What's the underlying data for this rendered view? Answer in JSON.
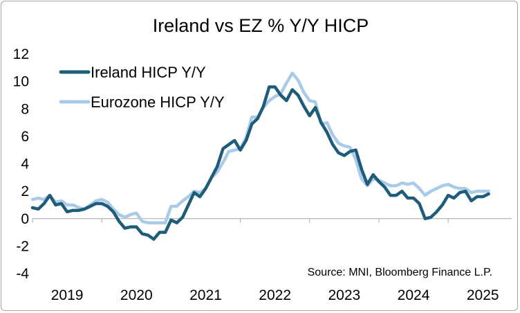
{
  "chart_data": {
    "type": "line",
    "title": "Ireland vs EZ % Y/Y HICP",
    "xlabel": "",
    "ylabel": "",
    "ylim": [
      -4,
      12
    ],
    "yticks": [
      "12",
      "10",
      "8",
      "6",
      "4",
      "2",
      "0",
      "-2",
      "-4"
    ],
    "xlim": [
      2019.0,
      2025.917
    ],
    "xticks": [
      "2019",
      "2020",
      "2021",
      "2022",
      "2023",
      "2024",
      "2025"
    ],
    "legend_position": "top-left",
    "annotation": "Source: MNI, Bloomberg Finance L.P.",
    "colors": {
      "ireland": "#1f5c7a",
      "eurozone": "#a9cbe8",
      "axis": "#a6a6a6"
    },
    "series": [
      {
        "name": "Ireland HICP Y/Y",
        "x_start": "2019-01",
        "frequency": "monthly",
        "values": [
          0.8,
          0.7,
          1.1,
          1.7,
          1.0,
          1.1,
          0.5,
          0.6,
          0.6,
          0.7,
          0.9,
          1.1,
          1.1,
          0.9,
          0.5,
          -0.2,
          -0.7,
          -0.6,
          -0.6,
          -1.1,
          -1.2,
          -1.5,
          -1.0,
          -1.0,
          -0.1,
          -0.3,
          0.1,
          1.0,
          1.9,
          1.6,
          2.2,
          3.0,
          3.8,
          5.1,
          5.4,
          5.7,
          5.0,
          5.7,
          6.9,
          7.3,
          8.2,
          9.6,
          9.6,
          9.0,
          8.6,
          9.4,
          9.0,
          8.2,
          7.5,
          8.1,
          7.0,
          6.3,
          5.4,
          4.8,
          4.6,
          4.9,
          5.0,
          3.6,
          2.5,
          3.2,
          2.7,
          2.3,
          1.7,
          1.7,
          2.0,
          1.5,
          1.5,
          1.1,
          0.0,
          0.1,
          0.5,
          1.0,
          1.7,
          1.5,
          1.9,
          2.0,
          1.3,
          1.6,
          1.6,
          1.8
        ]
      },
      {
        "name": "Eurozone HICP Y/Y",
        "x_start": "2019-01",
        "frequency": "monthly",
        "values": [
          1.4,
          1.5,
          1.4,
          1.7,
          1.2,
          1.3,
          1.0,
          1.0,
          0.8,
          0.7,
          1.0,
          1.3,
          1.4,
          1.2,
          0.7,
          0.3,
          0.1,
          0.3,
          0.4,
          -0.2,
          -0.3,
          -0.3,
          -0.3,
          -0.3,
          0.9,
          0.9,
          1.3,
          1.6,
          2.0,
          1.9,
          2.2,
          3.0,
          3.4,
          4.1,
          4.9,
          5.0,
          5.1,
          5.9,
          7.4,
          7.4,
          8.1,
          8.6,
          8.9,
          9.1,
          9.9,
          10.6,
          10.1,
          9.2,
          8.6,
          8.5,
          6.9,
          7.0,
          6.1,
          5.5,
          5.3,
          5.2,
          4.3,
          2.9,
          2.4,
          2.9,
          2.8,
          2.6,
          2.4,
          2.4,
          2.6,
          2.5,
          2.6,
          2.2,
          1.7,
          2.0,
          2.2,
          2.4,
          2.5,
          2.3,
          2.2,
          2.2,
          1.9,
          2.0,
          2.0,
          2.0
        ]
      }
    ]
  }
}
